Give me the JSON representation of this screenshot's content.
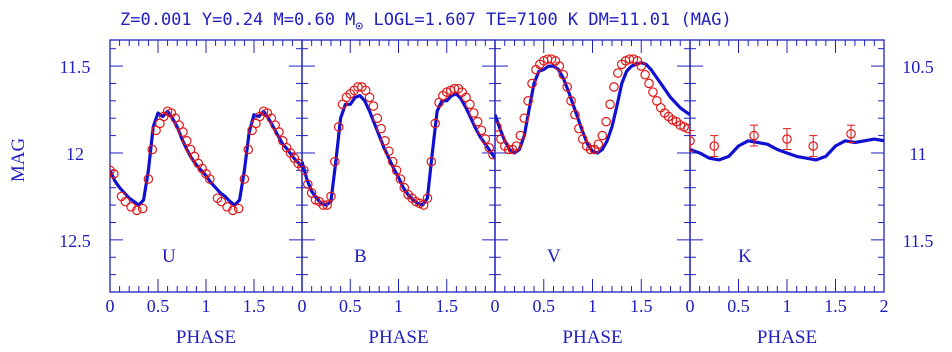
{
  "title": {
    "prefix": "Z=0.001 Y=0.24 M=0.60 M",
    "suffix": " LOGL=1.607 TE=7100 K DM=11.01 (MAG)",
    "sun_symbol": "⊙"
  },
  "colors": {
    "axes": "#2020c0",
    "model": "#1010d0",
    "observed": "#e01818",
    "text": "#2020c0"
  },
  "chart_data": [
    {
      "type": "line",
      "band": "U",
      "xlabel": "PHASE",
      "ylabel": "MAG",
      "xlim": [
        0,
        2
      ],
      "ylim": [
        12.8,
        11.35
      ],
      "y_ticks": [
        11.5,
        12,
        12.5
      ],
      "y_tick_labels": [
        "11.5",
        "12",
        "12.5"
      ],
      "x_ticks": [
        0,
        0.5,
        1,
        1.5
      ],
      "x_tick_labels": [
        "0",
        "0.5",
        "1",
        "1.5"
      ],
      "series": [
        {
          "style": "model-line",
          "x": [
            0.0,
            0.05,
            0.1,
            0.15,
            0.2,
            0.25,
            0.3,
            0.35,
            0.4,
            0.45,
            0.5,
            0.55,
            0.6,
            0.65,
            0.7,
            0.75,
            0.8,
            0.85,
            0.9,
            0.95,
            1.0,
            1.05,
            1.1,
            1.15,
            1.2,
            1.25,
            1.3,
            1.35,
            1.4,
            1.45,
            1.5,
            1.55,
            1.6,
            1.65,
            1.7,
            1.75,
            1.8,
            1.85,
            1.9,
            1.95,
            2.0
          ],
          "y": [
            12.1,
            12.16,
            12.2,
            12.23,
            12.26,
            12.28,
            12.3,
            12.27,
            12.1,
            11.85,
            11.77,
            11.79,
            11.76,
            11.8,
            11.85,
            11.92,
            11.98,
            12.03,
            12.07,
            12.1,
            12.13,
            12.17,
            12.2,
            12.23,
            12.25,
            12.28,
            12.3,
            12.27,
            12.1,
            11.88,
            11.78,
            11.79,
            11.76,
            11.8,
            11.85,
            11.9,
            11.95,
            11.98,
            12.02,
            12.05,
            12.08
          ]
        },
        {
          "style": "observed-circles",
          "x": [
            0.0,
            0.04,
            0.12,
            0.16,
            0.22,
            0.28,
            0.34,
            0.4,
            0.44,
            0.48,
            0.52,
            0.56,
            0.6,
            0.64,
            0.68,
            0.72,
            0.76,
            0.8,
            0.84,
            0.88,
            0.92,
            0.96,
            1.0,
            1.04,
            1.12,
            1.16,
            1.22,
            1.28,
            1.34,
            1.4,
            1.44,
            1.48,
            1.52,
            1.56,
            1.6,
            1.64,
            1.68,
            1.72,
            1.76,
            1.8,
            1.84,
            1.88,
            1.92,
            1.96,
            2.0
          ],
          "y": [
            12.1,
            12.12,
            12.25,
            12.28,
            12.31,
            12.33,
            12.32,
            12.15,
            11.98,
            11.87,
            11.83,
            11.79,
            11.76,
            11.77,
            11.8,
            11.84,
            11.88,
            11.93,
            11.98,
            12.02,
            12.06,
            12.09,
            12.12,
            12.15,
            12.26,
            12.28,
            12.31,
            12.33,
            12.32,
            12.15,
            11.98,
            11.87,
            11.83,
            11.79,
            11.76,
            11.77,
            11.8,
            11.84,
            11.88,
            11.93,
            11.97,
            12.0,
            12.03,
            12.06,
            12.08
          ]
        }
      ]
    },
    {
      "type": "line",
      "band": "B",
      "xlabel": "PHASE",
      "xlim": [
        0,
        2
      ],
      "ylim": [
        12.8,
        11.35
      ],
      "x_ticks": [
        0,
        0.5,
        1,
        1.5
      ],
      "x_tick_labels": [
        "0",
        "0.5",
        "1",
        "1.5"
      ],
      "series": [
        {
          "style": "model-line",
          "x": [
            0.0,
            0.05,
            0.1,
            0.15,
            0.2,
            0.25,
            0.3,
            0.35,
            0.4,
            0.45,
            0.5,
            0.55,
            0.6,
            0.65,
            0.7,
            0.75,
            0.8,
            0.85,
            0.9,
            0.95,
            1.0,
            1.05,
            1.1,
            1.15,
            1.2,
            1.25,
            1.3,
            1.35,
            1.4,
            1.45,
            1.5,
            1.55,
            1.6,
            1.65,
            1.7,
            1.75,
            1.8,
            1.85,
            1.9,
            1.95,
            2.0
          ],
          "y": [
            12.05,
            12.15,
            12.22,
            12.26,
            12.29,
            12.3,
            12.28,
            12.05,
            11.8,
            11.72,
            11.72,
            11.68,
            11.67,
            11.7,
            11.76,
            11.83,
            11.9,
            11.97,
            12.03,
            12.09,
            12.14,
            12.2,
            12.24,
            12.27,
            12.29,
            12.3,
            12.26,
            12.0,
            11.76,
            11.7,
            11.7,
            11.67,
            11.66,
            11.69,
            11.74,
            11.8,
            11.86,
            11.91,
            11.95,
            11.99,
            12.03
          ]
        },
        {
          "style": "observed-circles",
          "x": [
            0.02,
            0.06,
            0.1,
            0.14,
            0.18,
            0.22,
            0.26,
            0.3,
            0.34,
            0.38,
            0.42,
            0.46,
            0.5,
            0.54,
            0.58,
            0.62,
            0.66,
            0.7,
            0.74,
            0.78,
            0.82,
            0.86,
            0.9,
            0.94,
            0.98,
            1.02,
            1.06,
            1.1,
            1.14,
            1.18,
            1.22,
            1.26,
            1.3,
            1.34,
            1.38,
            1.42,
            1.46,
            1.5,
            1.54,
            1.58,
            1.62,
            1.66,
            1.7,
            1.74,
            1.78,
            1.82,
            1.86,
            1.9,
            1.94,
            1.98
          ],
          "y": [
            12.1,
            12.18,
            12.23,
            12.27,
            12.28,
            12.3,
            12.3,
            12.25,
            12.05,
            11.85,
            11.72,
            11.68,
            11.66,
            11.64,
            11.62,
            11.62,
            11.64,
            11.68,
            11.73,
            11.8,
            11.86,
            11.93,
            11.99,
            12.05,
            12.1,
            12.15,
            12.2,
            12.24,
            12.26,
            12.28,
            12.29,
            12.3,
            12.26,
            12.05,
            11.83,
            11.71,
            11.67,
            11.65,
            11.64,
            11.63,
            11.63,
            11.65,
            11.68,
            11.72,
            11.77,
            11.82,
            11.87,
            11.92,
            11.97,
            12.01
          ]
        }
      ]
    },
    {
      "type": "line",
      "band": "V",
      "xlabel": "PHASE",
      "xlim": [
        0,
        2
      ],
      "ylim": [
        12.8,
        11.35
      ],
      "x_ticks": [
        0,
        0.5,
        1,
        1.5
      ],
      "x_tick_labels": [
        "0",
        "0.5",
        "1",
        "1.5"
      ],
      "series": [
        {
          "style": "model-line",
          "x": [
            0.0,
            0.05,
            0.1,
            0.15,
            0.2,
            0.25,
            0.3,
            0.35,
            0.4,
            0.45,
            0.5,
            0.55,
            0.6,
            0.65,
            0.7,
            0.75,
            0.8,
            0.85,
            0.9,
            0.95,
            1.0,
            1.05,
            1.1,
            1.15,
            1.2,
            1.25,
            1.3,
            1.35,
            1.4,
            1.45,
            1.5,
            1.55,
            1.6,
            1.65,
            1.7,
            1.75,
            1.8,
            1.85,
            1.9,
            1.95,
            2.0
          ],
          "y": [
            11.78,
            11.86,
            11.93,
            11.98,
            12.0,
            11.98,
            11.9,
            11.75,
            11.6,
            11.53,
            11.52,
            11.5,
            11.5,
            11.52,
            11.57,
            11.64,
            11.72,
            11.8,
            11.88,
            11.95,
            11.99,
            12.0,
            11.98,
            11.93,
            11.85,
            11.73,
            11.6,
            11.53,
            11.5,
            11.49,
            11.48,
            11.49,
            11.52,
            11.56,
            11.6,
            11.64,
            11.68,
            11.71,
            11.74,
            11.76,
            11.78
          ]
        },
        {
          "style": "observed-circles",
          "x": [
            0.02,
            0.06,
            0.1,
            0.14,
            0.18,
            0.22,
            0.26,
            0.3,
            0.34,
            0.38,
            0.42,
            0.46,
            0.5,
            0.54,
            0.58,
            0.62,
            0.66,
            0.7,
            0.74,
            0.78,
            0.82,
            0.86,
            0.9,
            0.94,
            0.98,
            1.02,
            1.06,
            1.1,
            1.14,
            1.18,
            1.22,
            1.26,
            1.3,
            1.34,
            1.38,
            1.42,
            1.46,
            1.5,
            1.54,
            1.58,
            1.62,
            1.66,
            1.7,
            1.74,
            1.78,
            1.82,
            1.86,
            1.9,
            1.94,
            1.98
          ],
          "y": [
            11.85,
            11.92,
            11.96,
            11.98,
            11.98,
            11.96,
            11.9,
            11.8,
            11.7,
            11.6,
            11.52,
            11.49,
            11.47,
            11.46,
            11.46,
            11.47,
            11.5,
            11.55,
            11.62,
            11.7,
            11.78,
            11.86,
            11.92,
            11.96,
            11.98,
            11.98,
            11.95,
            11.9,
            11.82,
            11.72,
            11.62,
            11.54,
            11.49,
            11.47,
            11.46,
            11.46,
            11.47,
            11.5,
            11.55,
            11.6,
            11.65,
            11.7,
            11.74,
            11.77,
            11.79,
            11.81,
            11.82,
            11.84,
            11.85,
            11.86
          ]
        }
      ]
    },
    {
      "type": "line",
      "band": "K",
      "xlabel": "PHASE",
      "xlim": [
        0,
        2
      ],
      "ylim": [
        11.8,
        10.35
      ],
      "x_ticks": [
        0,
        0.5,
        1,
        1.5,
        2
      ],
      "x_tick_labels": [
        "0",
        "0.5",
        "1",
        "1.5",
        "2"
      ],
      "y_ticks": [
        10.5,
        11,
        11.5
      ],
      "y_tick_labels": [
        "10.5",
        "11",
        "11.5"
      ],
      "series": [
        {
          "style": "model-line",
          "x": [
            0.0,
            0.1,
            0.2,
            0.3,
            0.4,
            0.5,
            0.6,
            0.7,
            0.8,
            0.9,
            1.0,
            1.1,
            1.2,
            1.3,
            1.4,
            1.5,
            1.6,
            1.7,
            1.8,
            1.9,
            2.0
          ],
          "y": [
            10.98,
            11.0,
            11.03,
            11.04,
            11.02,
            10.96,
            10.93,
            10.94,
            10.95,
            10.98,
            11.0,
            11.02,
            11.03,
            11.04,
            11.02,
            10.96,
            10.93,
            10.94,
            10.93,
            10.92,
            10.93
          ]
        },
        {
          "style": "observed-errorbars",
          "x": [
            0.0,
            0.25,
            0.66,
            1.0,
            1.27,
            1.66
          ],
          "y": [
            10.93,
            10.96,
            10.9,
            10.92,
            10.96,
            10.89
          ],
          "err": [
            0.06,
            0.06,
            0.06,
            0.06,
            0.06,
            0.05
          ]
        }
      ]
    }
  ]
}
